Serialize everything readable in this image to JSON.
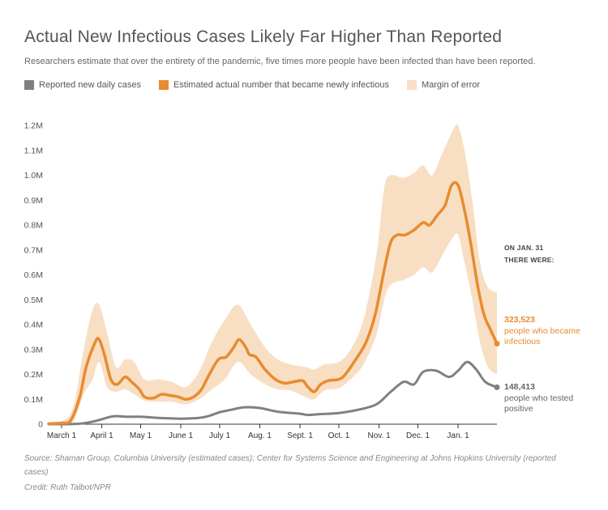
{
  "header": {
    "title": "Actual New Infectious Cases Likely Far Higher Than Reported",
    "subtitle": "Researchers estimate that over the entirety of the pandemic, five times more people have been infected than have been reported."
  },
  "legend": [
    {
      "label": "Reported new daily cases",
      "color": "#808080"
    },
    {
      "label": "Estimated actual number that became newly infectious",
      "color": "#e88b2e"
    },
    {
      "label": "Margin of error",
      "color": "#f8dfc4"
    }
  ],
  "annotation": {
    "title_line1": "ON JAN. 31",
    "title_line2": "THERE WERE:",
    "estimated_value": "323,523",
    "estimated_text1": "people who became",
    "estimated_text2": "infectious",
    "reported_value": "148,413",
    "reported_text1": "people who tested",
    "reported_text2": "positive"
  },
  "footer": {
    "source": "Source: Shaman Group, Columbia University (estimated cases); Center for Systems Science and Engineering at Johns Hopkins University (reported cases)",
    "credit": "Credit: Ruth Talbot/NPR"
  },
  "chart_data": {
    "type": "line",
    "title": "Actual New Infectious Cases Likely Far Higher Than Reported",
    "ylim": [
      0,
      1200000
    ],
    "yticks": [
      {
        "value": 0,
        "label": "0"
      },
      {
        "value": 100000,
        "label": "0.1M"
      },
      {
        "value": 200000,
        "label": "0.2M"
      },
      {
        "value": 300000,
        "label": "0.3M"
      },
      {
        "value": 400000,
        "label": "0.4M"
      },
      {
        "value": 500000,
        "label": "0.5M"
      },
      {
        "value": 600000,
        "label": "0.6M"
      },
      {
        "value": 700000,
        "label": "0.7M"
      },
      {
        "value": 800000,
        "label": "0.8M"
      },
      {
        "value": 900000,
        "label": "0.9M"
      },
      {
        "value": 1000000,
        "label": "1.0M"
      },
      {
        "value": 1100000,
        "label": "1.1M"
      },
      {
        "value": 1200000,
        "label": "1.2M"
      }
    ],
    "xticks": [
      {
        "date": "2020-03-01",
        "label": "March 1"
      },
      {
        "date": "2020-04-01",
        "label": "April 1"
      },
      {
        "date": "2020-05-01",
        "label": "May 1"
      },
      {
        "date": "2020-06-01",
        "label": "June 1"
      },
      {
        "date": "2020-07-01",
        "label": "July 1"
      },
      {
        "date": "2020-08-01",
        "label": "Aug. 1"
      },
      {
        "date": "2020-09-01",
        "label": "Sept. 1"
      },
      {
        "date": "2020-10-01",
        "label": "Oct. 1"
      },
      {
        "date": "2020-11-01",
        "label": "Nov. 1"
      },
      {
        "date": "2020-12-01",
        "label": "Dec. 1"
      },
      {
        "date": "2021-01-01",
        "label": "Jan. 1"
      }
    ],
    "x_range": [
      "2020-02-20",
      "2021-01-31"
    ],
    "series": [
      {
        "name": "Estimated actual number that became newly infectious",
        "color": "#e88b2e",
        "points": [
          [
            "2020-02-20",
            2000
          ],
          [
            "2020-03-01",
            5000
          ],
          [
            "2020-03-08",
            15000
          ],
          [
            "2020-03-15",
            110000
          ],
          [
            "2020-03-20",
            230000
          ],
          [
            "2020-03-27",
            330000
          ],
          [
            "2020-03-30",
            340000
          ],
          [
            "2020-04-03",
            280000
          ],
          [
            "2020-04-08",
            180000
          ],
          [
            "2020-04-13",
            160000
          ],
          [
            "2020-04-19",
            190000
          ],
          [
            "2020-04-24",
            170000
          ],
          [
            "2020-04-30",
            140000
          ],
          [
            "2020-05-04",
            110000
          ],
          [
            "2020-05-11",
            105000
          ],
          [
            "2020-05-17",
            120000
          ],
          [
            "2020-05-24",
            115000
          ],
          [
            "2020-05-30",
            110000
          ],
          [
            "2020-06-05",
            100000
          ],
          [
            "2020-06-11",
            110000
          ],
          [
            "2020-06-17",
            140000
          ],
          [
            "2020-06-22",
            190000
          ],
          [
            "2020-06-30",
            260000
          ],
          [
            "2020-07-06",
            270000
          ],
          [
            "2020-07-12",
            310000
          ],
          [
            "2020-07-16",
            340000
          ],
          [
            "2020-07-21",
            310000
          ],
          [
            "2020-07-24",
            280000
          ],
          [
            "2020-07-29",
            270000
          ],
          [
            "2020-08-05",
            220000
          ],
          [
            "2020-08-13",
            180000
          ],
          [
            "2020-08-20",
            165000
          ],
          [
            "2020-08-27",
            170000
          ],
          [
            "2020-09-03",
            175000
          ],
          [
            "2020-09-07",
            150000
          ],
          [
            "2020-09-12",
            130000
          ],
          [
            "2020-09-17",
            160000
          ],
          [
            "2020-09-23",
            175000
          ],
          [
            "2020-10-01",
            180000
          ],
          [
            "2020-10-06",
            200000
          ],
          [
            "2020-10-14",
            260000
          ],
          [
            "2020-10-22",
            330000
          ],
          [
            "2020-10-29",
            440000
          ],
          [
            "2020-11-05",
            620000
          ],
          [
            "2020-11-10",
            730000
          ],
          [
            "2020-11-15",
            760000
          ],
          [
            "2020-11-21",
            760000
          ],
          [
            "2020-11-28",
            780000
          ],
          [
            "2020-12-05",
            810000
          ],
          [
            "2020-12-10",
            800000
          ],
          [
            "2020-12-16",
            840000
          ],
          [
            "2020-12-22",
            880000
          ],
          [
            "2020-12-27",
            960000
          ],
          [
            "2021-01-01",
            960000
          ],
          [
            "2021-01-06",
            860000
          ],
          [
            "2021-01-11",
            720000
          ],
          [
            "2021-01-16",
            560000
          ],
          [
            "2021-01-21",
            440000
          ],
          [
            "2021-01-26",
            380000
          ],
          [
            "2021-01-31",
            323523
          ]
        ]
      },
      {
        "name": "Reported new daily cases",
        "color": "#808080",
        "points": [
          [
            "2020-02-20",
            0
          ],
          [
            "2020-03-01",
            0
          ],
          [
            "2020-03-15",
            2000
          ],
          [
            "2020-03-25",
            10000
          ],
          [
            "2020-04-01",
            20000
          ],
          [
            "2020-04-10",
            32000
          ],
          [
            "2020-04-20",
            30000
          ],
          [
            "2020-05-01",
            30000
          ],
          [
            "2020-05-15",
            25000
          ],
          [
            "2020-06-01",
            22000
          ],
          [
            "2020-06-15",
            25000
          ],
          [
            "2020-06-22",
            32000
          ],
          [
            "2020-07-01",
            48000
          ],
          [
            "2020-07-10",
            58000
          ],
          [
            "2020-07-20",
            68000
          ],
          [
            "2020-08-01",
            65000
          ],
          [
            "2020-08-15",
            50000
          ],
          [
            "2020-09-01",
            42000
          ],
          [
            "2020-09-07",
            37000
          ],
          [
            "2020-09-15",
            40000
          ],
          [
            "2020-10-01",
            45000
          ],
          [
            "2020-10-15",
            57000
          ],
          [
            "2020-10-30",
            80000
          ],
          [
            "2020-11-10",
            130000
          ],
          [
            "2020-11-20",
            170000
          ],
          [
            "2020-11-28",
            160000
          ],
          [
            "2020-12-05",
            210000
          ],
          [
            "2020-12-15",
            215000
          ],
          [
            "2020-12-25",
            190000
          ],
          [
            "2021-01-01",
            215000
          ],
          [
            "2021-01-08",
            250000
          ],
          [
            "2021-01-15",
            220000
          ],
          [
            "2021-01-22",
            170000
          ],
          [
            "2021-01-31",
            148413
          ]
        ]
      },
      {
        "name": "Margin of error",
        "color": "#f8dfc4",
        "points": [
          [
            "2020-02-20",
            0,
            4000
          ],
          [
            "2020-03-01",
            2000,
            10000
          ],
          [
            "2020-03-10",
            10000,
            70000
          ],
          [
            "2020-03-18",
            120000,
            300000
          ],
          [
            "2020-03-25",
            180000,
            460000
          ],
          [
            "2020-03-30",
            250000,
            480000
          ],
          [
            "2020-04-05",
            150000,
            370000
          ],
          [
            "2020-04-12",
            130000,
            230000
          ],
          [
            "2020-04-19",
            140000,
            260000
          ],
          [
            "2020-04-26",
            120000,
            250000
          ],
          [
            "2020-05-04",
            95000,
            180000
          ],
          [
            "2020-05-15",
            90000,
            180000
          ],
          [
            "2020-05-25",
            90000,
            170000
          ],
          [
            "2020-06-05",
            80000,
            150000
          ],
          [
            "2020-06-15",
            100000,
            210000
          ],
          [
            "2020-06-25",
            140000,
            330000
          ],
          [
            "2020-07-05",
            180000,
            420000
          ],
          [
            "2020-07-15",
            250000,
            480000
          ],
          [
            "2020-07-25",
            200000,
            400000
          ],
          [
            "2020-08-05",
            160000,
            310000
          ],
          [
            "2020-08-15",
            140000,
            260000
          ],
          [
            "2020-08-25",
            135000,
            240000
          ],
          [
            "2020-09-05",
            110000,
            230000
          ],
          [
            "2020-09-12",
            100000,
            220000
          ],
          [
            "2020-09-20",
            135000,
            240000
          ],
          [
            "2020-10-01",
            145000,
            250000
          ],
          [
            "2020-10-10",
            180000,
            300000
          ],
          [
            "2020-10-20",
            240000,
            420000
          ],
          [
            "2020-10-30",
            360000,
            680000
          ],
          [
            "2020-11-05",
            500000,
            950000
          ],
          [
            "2020-11-10",
            560000,
            1000000
          ],
          [
            "2020-11-20",
            580000,
            990000
          ],
          [
            "2020-11-28",
            600000,
            1010000
          ],
          [
            "2020-12-05",
            630000,
            1040000
          ],
          [
            "2020-12-12",
            610000,
            1000000
          ],
          [
            "2020-12-20",
            680000,
            1090000
          ],
          [
            "2020-12-28",
            750000,
            1180000
          ],
          [
            "2021-01-01",
            760000,
            1200000
          ],
          [
            "2021-01-06",
            650000,
            1100000
          ],
          [
            "2021-01-12",
            500000,
            900000
          ],
          [
            "2021-01-18",
            330000,
            650000
          ],
          [
            "2021-01-24",
            230000,
            550000
          ],
          [
            "2021-01-31",
            200000,
            530000
          ]
        ]
      }
    ],
    "end_points": [
      {
        "series": "Estimated actual number that became newly infectious",
        "date": "2021-01-31",
        "value": 323523
      },
      {
        "series": "Reported new daily cases",
        "date": "2021-01-31",
        "value": 148413
      }
    ],
    "grid": false
  }
}
